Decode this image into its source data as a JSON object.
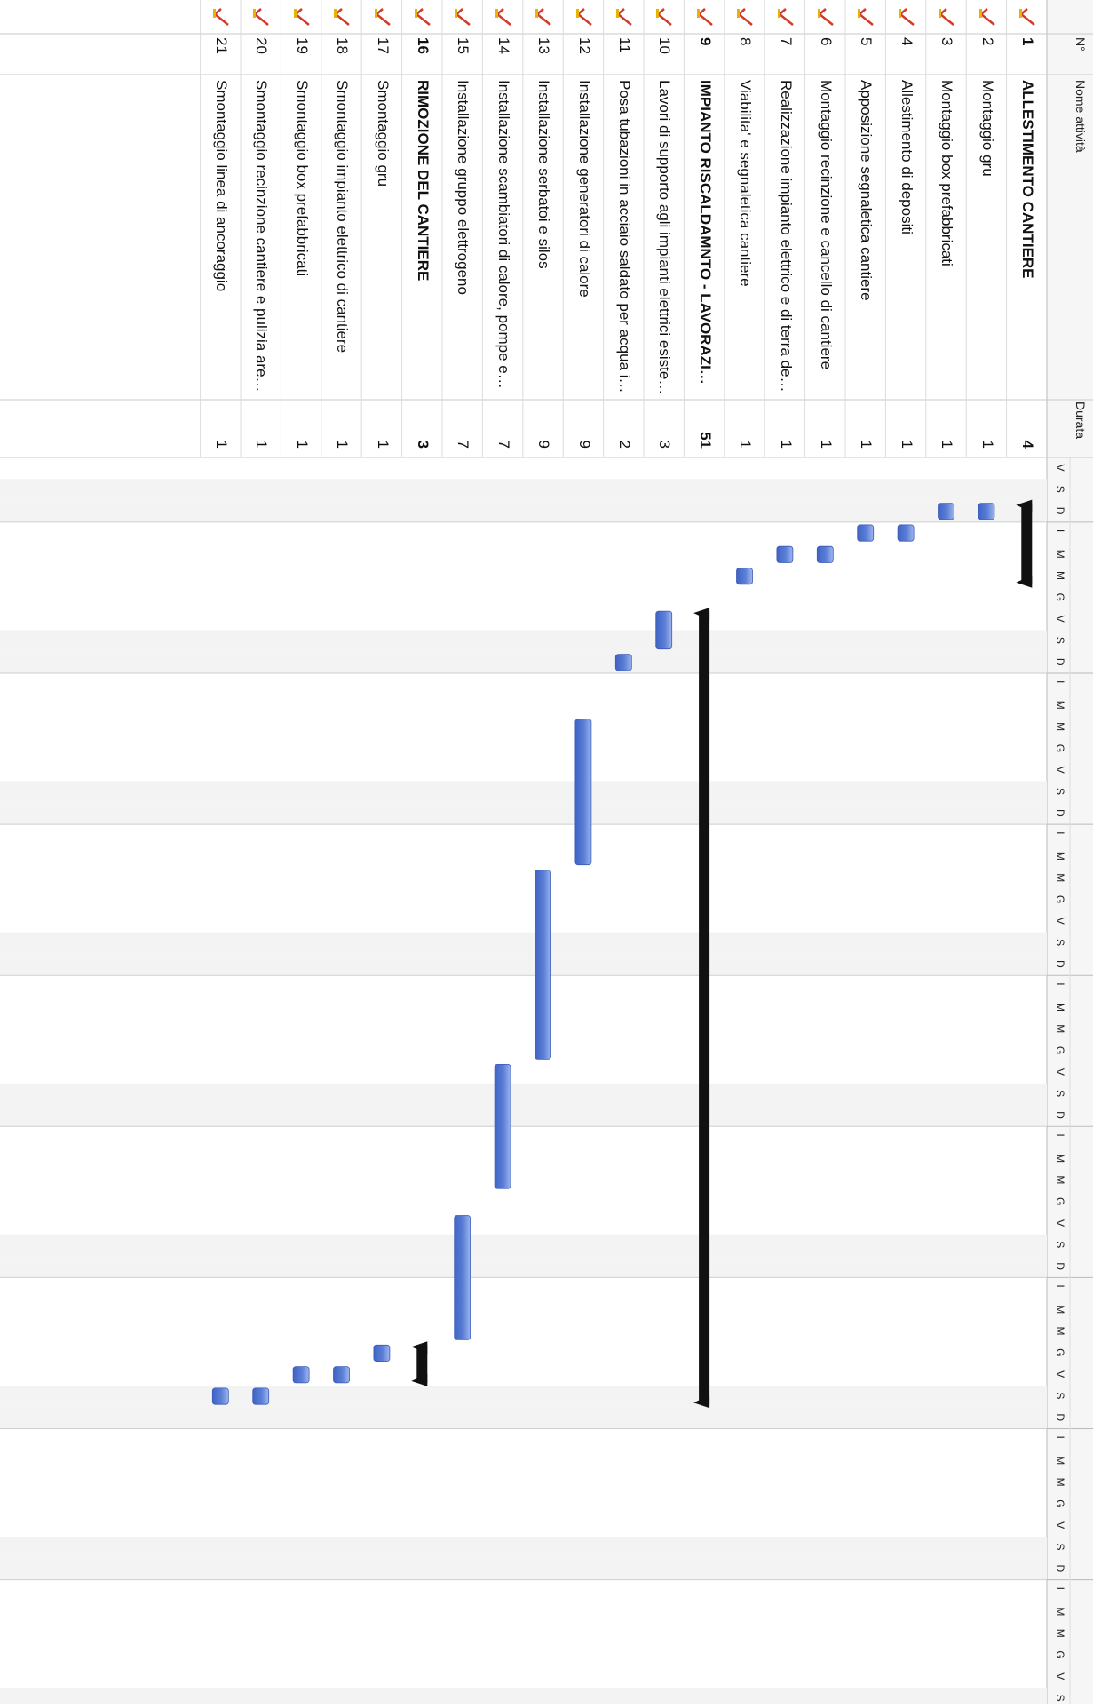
{
  "table": {
    "col_num": "N°",
    "col_name": "Nome attività",
    "col_duration": "Durata"
  },
  "timeline": {
    "start_weekday_index": 0,
    "day_letters": [
      "V",
      "S",
      "D",
      "L",
      "M",
      "M",
      "G"
    ],
    "weekend_shading": "#f3f3f3",
    "bar_color": "#5b7fd6",
    "summary_color": "#111111"
  },
  "tasks": [
    {
      "num": "1",
      "name": "ALLESTIMENTO CANTIERE",
      "duration": "4",
      "summary": true,
      "start": 2,
      "days": 4
    },
    {
      "num": "2",
      "name": "Montaggio gru",
      "duration": "1",
      "summary": false,
      "start": 2,
      "days": 1
    },
    {
      "num": "3",
      "name": "Montaggio box prefabbricati",
      "duration": "1",
      "summary": false,
      "start": 2,
      "days": 1
    },
    {
      "num": "4",
      "name": "Allestimento di depositi",
      "duration": "1",
      "summary": false,
      "start": 3,
      "days": 1
    },
    {
      "num": "5",
      "name": "Apposizione segnaletica cantiere",
      "duration": "1",
      "summary": false,
      "start": 3,
      "days": 1
    },
    {
      "num": "6",
      "name": "Montaggio recinzione e cancello di cantiere",
      "duration": "1",
      "summary": false,
      "start": 4,
      "days": 1
    },
    {
      "num": "7",
      "name": "Realizzazione impianto elettrico e di terra del cantiere",
      "duration": "1",
      "summary": false,
      "start": 4,
      "days": 1
    },
    {
      "num": "8",
      "name": "Viabilita' e segnaletica cantiere",
      "duration": "1",
      "summary": false,
      "start": 5,
      "days": 1
    },
    {
      "num": "9",
      "name": "IMPIANTO RISCALDAMNTO - LAVORAZIONI PER CENTRALE ED...",
      "duration": "51",
      "summary": true,
      "start": 7,
      "days": 37
    },
    {
      "num": "10",
      "name": "Lavori di supporto agli impianti elettrici esistenti",
      "duration": "3",
      "summary": false,
      "start": 7,
      "days": 2
    },
    {
      "num": "11",
      "name": "Posa tubazioni in acciaio saldato per acqua in pressione",
      "duration": "2",
      "summary": false,
      "start": 9,
      "days": 1
    },
    {
      "num": "12",
      "name": "Installazione generatori di calore",
      "duration": "9",
      "summary": false,
      "start": 12,
      "days": 7
    },
    {
      "num": "13",
      "name": "Installazione serbatoi e silos",
      "duration": "9",
      "summary": false,
      "start": 19,
      "days": 9
    },
    {
      "num": "14",
      "name": "Installazione scambiatori di calore, pompe ed accessori",
      "duration": "7",
      "summary": false,
      "start": 28,
      "days": 6
    },
    {
      "num": "15",
      "name": "Installazione gruppo elettrogeno",
      "duration": "7",
      "summary": false,
      "start": 35,
      "days": 6
    },
    {
      "num": "16",
      "name": "RIMOZIONE DEL CANTIERE",
      "duration": "3",
      "summary": true,
      "start": 41,
      "days": 2
    },
    {
      "num": "17",
      "name": "Smontaggio gru",
      "duration": "1",
      "summary": false,
      "start": 41,
      "days": 1
    },
    {
      "num": "18",
      "name": "Smontaggio impianto elettrico di cantiere",
      "duration": "1",
      "summary": false,
      "start": 42,
      "days": 1
    },
    {
      "num": "19",
      "name": "Smontaggio box prefabbricati",
      "duration": "1",
      "summary": false,
      "start": 42,
      "days": 1
    },
    {
      "num": "20",
      "name": "Smontaggio recinzione cantiere e pulizia area esterna",
      "duration": "1",
      "summary": false,
      "start": 43,
      "days": 1
    },
    {
      "num": "21",
      "name": "Smontaggio linea di ancoraggio",
      "duration": "1",
      "summary": false,
      "start": 43,
      "days": 1
    }
  ]
}
